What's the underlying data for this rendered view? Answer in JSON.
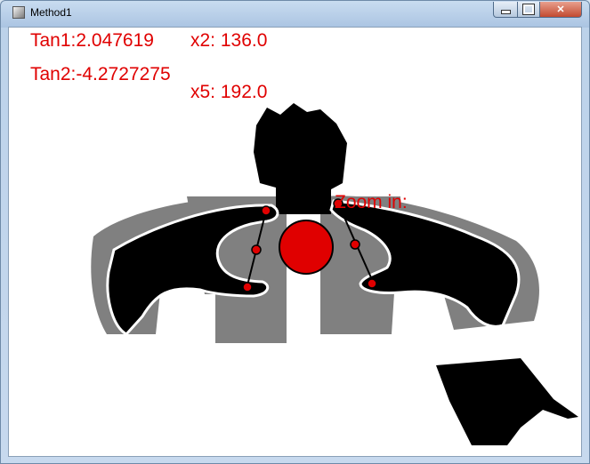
{
  "window": {
    "title": "Method1",
    "icons": {
      "app": "app-icon",
      "minimize": "minimize-icon",
      "maximize": "maximize-icon",
      "close": "close-icon"
    }
  },
  "readouts": {
    "tan1": "Tan1:2.047619",
    "x2": "x2: 136.0",
    "tan2": "Tan2:-4.2727275",
    "x5": "x5: 192.0",
    "zoom": "Zoom in:"
  },
  "colors": {
    "text": "#e00000",
    "marker": "#e00000",
    "silhouette": "#000000",
    "shadow": "#808080"
  }
}
